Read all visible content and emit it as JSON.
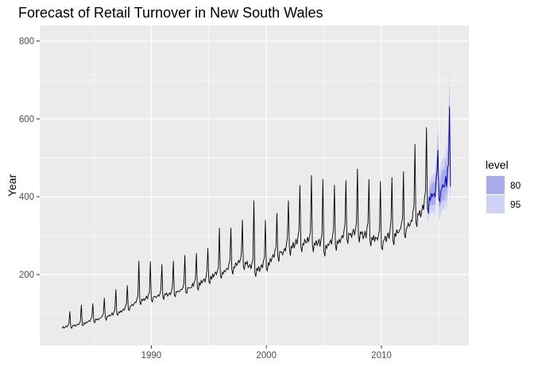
{
  "chart_data": {
    "type": "line",
    "title": "Forecast of Retail Turnover in New South Wales",
    "xlabel": "",
    "ylabel": "Year",
    "xlim": [
      1980.3,
      2017.6
    ],
    "ylim": [
      18,
      840
    ],
    "x_ticks": [
      1990,
      2000,
      2010
    ],
    "x_tick_labels": [
      "1990",
      "2000",
      "2010"
    ],
    "y_ticks": [
      200,
      400,
      600,
      800
    ],
    "y_tick_labels": [
      "200",
      "400",
      "600",
      "800"
    ],
    "grid": true,
    "legend": {
      "title": "level",
      "position": "right",
      "entries": [
        {
          "label": "80",
          "color": "#a9acea"
        },
        {
          "label": "95",
          "color": "#cfd1f5"
        }
      ]
    },
    "colors": {
      "panel": "#ebebeb",
      "grid": "#ffffff",
      "history": "#000000",
      "forecast": "#0000cc"
    },
    "history": {
      "start": 1982.25,
      "frequency": 12,
      "yearly_levels": [
        [
          1982,
          62
        ],
        [
          1983,
          66
        ],
        [
          1984,
          72
        ],
        [
          1985,
          82
        ],
        [
          1986,
          90
        ],
        [
          1987,
          100
        ],
        [
          1988,
          113
        ],
        [
          1989,
          132
        ],
        [
          1990,
          140
        ],
        [
          1991,
          144
        ],
        [
          1992,
          152
        ],
        [
          1993,
          160
        ],
        [
          1994,
          172
        ],
        [
          1995,
          188
        ],
        [
          1996,
          200
        ],
        [
          1997,
          215
        ],
        [
          1998,
          230
        ],
        [
          1999,
          208
        ],
        [
          2000,
          222
        ],
        [
          2001,
          248
        ],
        [
          2002,
          270
        ],
        [
          2003,
          278
        ],
        [
          2004,
          282
        ],
        [
          2005,
          270
        ],
        [
          2006,
          278
        ],
        [
          2007,
          295
        ],
        [
          2008,
          302
        ],
        [
          2009,
          292
        ],
        [
          2010,
          280
        ],
        [
          2011,
          300
        ],
        [
          2012,
          312
        ],
        [
          2013,
          340
        ],
        [
          2014,
          380
        ]
      ],
      "december_peaks": [
        [
          1982,
          105
        ],
        [
          1983,
          122
        ],
        [
          1984,
          126
        ],
        [
          1985,
          140
        ],
        [
          1986,
          162
        ],
        [
          1987,
          172
        ],
        [
          1988,
          235
        ],
        [
          1989,
          234
        ],
        [
          1990,
          226
        ],
        [
          1991,
          235
        ],
        [
          1992,
          250
        ],
        [
          1993,
          255
        ],
        [
          1994,
          268
        ],
        [
          1995,
          320
        ],
        [
          1996,
          320
        ],
        [
          1997,
          340
        ],
        [
          1998,
          390
        ],
        [
          1999,
          340
        ],
        [
          2000,
          358
        ],
        [
          2001,
          390
        ],
        [
          2002,
          430
        ],
        [
          2003,
          455
        ],
        [
          2004,
          445
        ],
        [
          2005,
          430
        ],
        [
          2006,
          442
        ],
        [
          2007,
          472
        ],
        [
          2008,
          445
        ],
        [
          2009,
          440
        ],
        [
          2010,
          450
        ],
        [
          2011,
          465
        ],
        [
          2012,
          535
        ],
        [
          2013,
          578
        ]
      ],
      "end": 2014.0
    },
    "forecast": {
      "start": 2014.0,
      "end": 2016.0,
      "point_levels": [
        [
          2014,
          390
        ],
        [
          2015,
          410
        ],
        [
          2016,
          440
        ]
      ],
      "december_peaks": [
        [
          2014,
          520
        ],
        [
          2015,
          632
        ],
        [
          2016,
          662
        ]
      ],
      "interval_80": {
        "peak_upper": [
          [
            2014,
            572
          ],
          [
            2015,
            690
          ]
        ],
        "trough_lower": 375
      },
      "interval_95": {
        "peak_upper": [
          [
            2014,
            600
          ],
          [
            2015,
            740
          ]
        ],
        "trough_lower": 340
      }
    }
  }
}
